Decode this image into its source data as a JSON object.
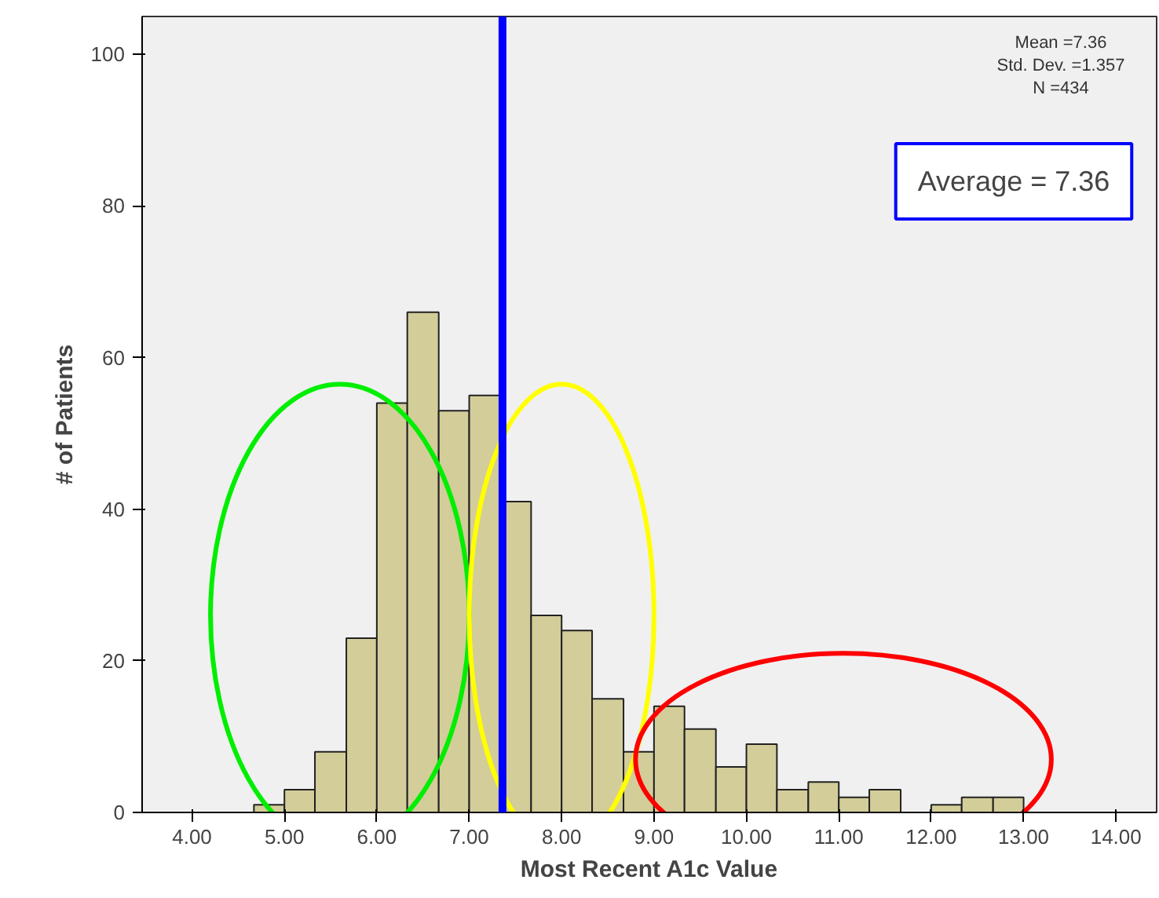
{
  "chart_data": {
    "type": "histogram",
    "xlabel": "Most Recent A1c Value",
    "ylabel": "# of Patients",
    "bins": [
      4.67,
      5.0,
      5.33,
      5.67,
      6.0,
      6.33,
      6.67,
      7.0,
      7.33,
      7.67,
      8.0,
      8.33,
      8.67,
      9.0,
      9.33,
      9.67,
      10.0,
      10.33,
      10.67,
      11.0,
      11.33,
      11.67,
      12.0,
      12.33,
      12.67,
      13.0
    ],
    "values": [
      1,
      3,
      8,
      23,
      54,
      66,
      53,
      55,
      41,
      26,
      24,
      15,
      8,
      14,
      11,
      6,
      9,
      3,
      4,
      2,
      3,
      0,
      1,
      2,
      2
    ],
    "color": "#d3cd9a",
    "xlim": [
      3.46,
      14.44
    ],
    "ylim": [
      0,
      105
    ],
    "xticks": [
      {
        "value": 4,
        "label": "4.00"
      },
      {
        "value": 5,
        "label": "5.00"
      },
      {
        "value": 6,
        "label": "6.00"
      },
      {
        "value": 7,
        "label": "7.00"
      },
      {
        "value": 8,
        "label": "8.00"
      },
      {
        "value": 9,
        "label": "9.00"
      },
      {
        "value": 10,
        "label": "10.00"
      },
      {
        "value": 11,
        "label": "11.00"
      },
      {
        "value": 12,
        "label": "12.00"
      },
      {
        "value": 13,
        "label": "13.00"
      },
      {
        "value": 14,
        "label": "14.00"
      }
    ],
    "yticks": [
      0,
      20,
      40,
      60,
      80,
      100
    ],
    "ref_lines": [
      {
        "axis": "x",
        "value": 7.36,
        "color": "#0000ff"
      }
    ],
    "annotations": [
      "Mean =7.36\nStd. Dev. =1.357\nN =434",
      "Average = 7.36"
    ],
    "grid": false
  }
}
